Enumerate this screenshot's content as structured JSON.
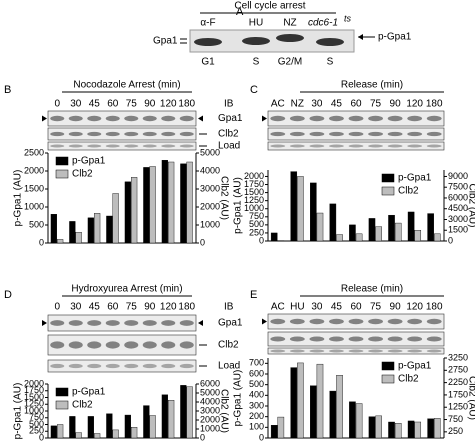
{
  "panel_a": {
    "letter": "A",
    "header": "Cell cycle arrest",
    "lanes": [
      "α-F",
      "HU",
      "NZ",
      "cdc6-1"
    ],
    "superscript": "ts",
    "row": "Gpa1",
    "marker": "p-Gpa1",
    "phases": [
      "G1",
      "S",
      "G2/M",
      "S"
    ]
  },
  "panels": [
    {
      "letter": "B",
      "header": "Nocodazole Arrest (min)",
      "ib": "IB",
      "rows": [
        "Gpa1",
        "Clb2",
        "Load"
      ]
    },
    {
      "letter": "C",
      "header": "Release (min)"
    },
    {
      "letter": "D",
      "header": "Hydroxyurea Arrest (min)",
      "ib": "IB",
      "rows": [
        "Gpa1",
        "Clb2",
        "Load"
      ]
    },
    {
      "letter": "E",
      "header": "Release (min)"
    }
  ],
  "chart_data": [
    {
      "type": "bar",
      "categories": [
        "0",
        "30",
        "45",
        "60",
        "75",
        "90",
        "120",
        "180"
      ],
      "ylabel": "p-Gpa1 (AU)",
      "y2label": "Clb2 (AU)",
      "legend": "upper left",
      "series": [
        {
          "name": "p-Gpa1",
          "color": "#000000",
          "values": [
            800,
            600,
            700,
            750,
            1700,
            2100,
            2300,
            2200
          ]
        },
        {
          "name": "Clb2",
          "color": "#bdbdbd",
          "axis": "y2",
          "values": [
            200,
            600,
            1650,
            2750,
            3650,
            4250,
            4500,
            4500
          ]
        }
      ],
      "ylim": [
        0,
        2500
      ],
      "yticks": [
        0,
        500,
        1000,
        1500,
        2000,
        2500
      ],
      "y2lim": [
        0,
        5000
      ],
      "y2ticks": [
        0,
        1000,
        2000,
        3000,
        4000,
        5000
      ]
    },
    {
      "type": "bar",
      "categories": [
        "AC",
        "NZ",
        "30",
        "45",
        "60",
        "75",
        "90",
        "120",
        "180"
      ],
      "ylabel": "p-Gpa1 (AU)",
      "y2label": "Clb2 (AU)",
      "legend": "upper right",
      "series": [
        {
          "name": "p-Gpa1",
          "color": "#000000",
          "values": [
            250,
            2150,
            1800,
            1150,
            500,
            700,
            800,
            900,
            850
          ]
        },
        {
          "name": "Clb2",
          "color": "#bdbdbd",
          "axis": "y2",
          "values": [
            50,
            9000,
            3900,
            900,
            1000,
            2000,
            2500,
            1500,
            1000
          ]
        }
      ],
      "ylim": [
        0,
        2200
      ],
      "yticks": [
        0,
        250,
        500,
        750,
        1000,
        1250,
        1500,
        1750,
        2000
      ],
      "y2lim": [
        0,
        9900
      ],
      "y2ticks": [
        0,
        1500,
        3000,
        4500,
        6000,
        7500,
        9000
      ]
    },
    {
      "type": "bar",
      "categories": [
        "0",
        "30",
        "45",
        "60",
        "75",
        "90",
        "120",
        "180"
      ],
      "ylabel": "p-Gpa1 (AU)",
      "y2label": "Clb2 (AU)",
      "legend": "upper left",
      "series": [
        {
          "name": "p-Gpa1",
          "color": "#000000",
          "values": [
            450,
            800,
            800,
            900,
            850,
            1200,
            1600,
            1950
          ]
        },
        {
          "name": "Clb2",
          "color": "#bdbdbd",
          "axis": "y2",
          "values": [
            1500,
            600,
            500,
            900,
            1200,
            2500,
            4200,
            5700
          ]
        }
      ],
      "ylim": [
        0,
        2000
      ],
      "yticks": [
        0,
        250,
        500,
        750,
        1000,
        1250,
        1500,
        1750,
        2000
      ],
      "y2lim": [
        0,
        6000
      ],
      "y2ticks": [
        0,
        1000,
        2000,
        3000,
        4000,
        5000,
        6000
      ]
    },
    {
      "type": "bar",
      "categories": [
        "AC",
        "HU",
        "30",
        "45",
        "60",
        "75",
        "90",
        "120",
        "180"
      ],
      "ylabel": "p-Gpa1 (AU)",
      "y2label": "Clb2 (AU)",
      "legend": "upper right",
      "series": [
        {
          "name": "p-Gpa1",
          "color": "#000000",
          "values": [
            120,
            660,
            490,
            440,
            340,
            200,
            150,
            160,
            180
          ]
        },
        {
          "name": "Clb2",
          "color": "#bdbdbd",
          "axis": "y2",
          "values": [
            850,
            3050,
            3000,
            2550,
            1400,
            900,
            600,
            650,
            800
          ]
        }
      ],
      "ylim": [
        0,
        750
      ],
      "yticks": [
        0,
        100,
        200,
        300,
        400,
        500,
        600,
        700
      ],
      "y2lim": [
        0,
        3250
      ],
      "y2ticks": [
        250,
        750,
        1250,
        1750,
        2250,
        2750,
        3250
      ]
    }
  ]
}
